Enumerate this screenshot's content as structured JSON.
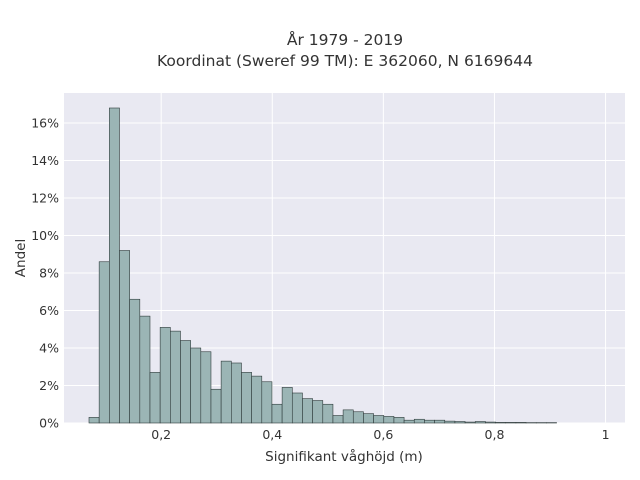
{
  "chart_data": {
    "type": "bar",
    "title_lines": [
      "År 1979 - 2019",
      "Koordinat (Sweref 99 TM): E 362060, N 6169644"
    ],
    "xlabel": "Signifikant våghöjd (m)",
    "ylabel": "Andel",
    "xlim": [
      0.025,
      1.035
    ],
    "ylim": [
      0,
      0.176
    ],
    "x_ticks": [
      {
        "value": 0.2,
        "label": "0,2"
      },
      {
        "value": 0.4,
        "label": "0,4"
      },
      {
        "value": 0.6,
        "label": "0,6"
      },
      {
        "value": 0.8,
        "label": "0,8"
      },
      {
        "value": 1.0,
        "label": "1"
      }
    ],
    "y_ticks": [
      {
        "value": 0,
        "label": "0%"
      },
      {
        "value": 0.02,
        "label": "2%"
      },
      {
        "value": 0.04,
        "label": "4%"
      },
      {
        "value": 0.06,
        "label": "6%"
      },
      {
        "value": 0.08,
        "label": "8%"
      },
      {
        "value": 0.1,
        "label": "10%"
      },
      {
        "value": 0.12,
        "label": "12%"
      },
      {
        "value": 0.14,
        "label": "14%"
      },
      {
        "value": 0.16,
        "label": "16%"
      }
    ],
    "grid": true,
    "bin_start": 0.07,
    "bin_width": 0.0183,
    "values": [
      0.003,
      0.086,
      0.168,
      0.092,
      0.066,
      0.057,
      0.027,
      0.051,
      0.049,
      0.044,
      0.04,
      0.038,
      0.018,
      0.033,
      0.032,
      0.027,
      0.025,
      0.022,
      0.01,
      0.019,
      0.016,
      0.013,
      0.012,
      0.01,
      0.004,
      0.007,
      0.006,
      0.005,
      0.004,
      0.0035,
      0.003,
      0.0015,
      0.002,
      0.0015,
      0.0015,
      0.001,
      0.0008,
      0.0005,
      0.0008,
      0.0005,
      0.0003,
      0.0003,
      0.0003,
      0.0002,
      0.0002,
      0.0002
    ],
    "colors": {
      "bar_fill": "#9bb5b5",
      "bar_stroke": "#2f3b3b",
      "plot_bg": "#e9e9f2",
      "grid": "#ffffff",
      "text": "#333333"
    }
  }
}
